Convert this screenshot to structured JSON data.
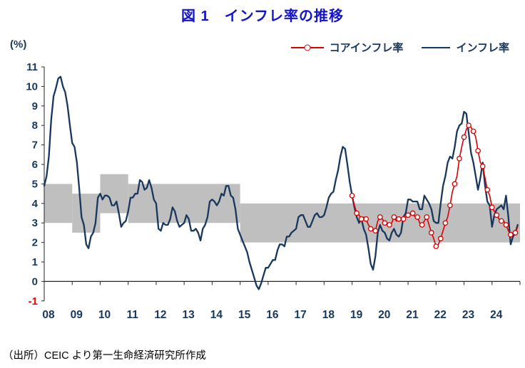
{
  "colors": {
    "title": "#1414CC",
    "navy": "#17375E",
    "red": "#D80000",
    "band": "#BFBFBF",
    "negative_tick": "#FF0000",
    "axis": "#262626"
  },
  "source_note": "（出所）CEIC より第一生命経済研究所作成",
  "chart_data": {
    "type": "line",
    "title": "図 1　インフレ率の推移",
    "ylabel": "(%)",
    "xlabel": "",
    "ylim": [
      -1,
      11
    ],
    "x_range": [
      2008,
      2025
    ],
    "grid": false,
    "legend_position": "top-right",
    "y_ticks": [
      11,
      10,
      9,
      8,
      7,
      6,
      5,
      4,
      3,
      2,
      1,
      0,
      -1
    ],
    "x_ticks": [
      "08",
      "09",
      "10",
      "11",
      "12",
      "13",
      "14",
      "15",
      "16",
      "17",
      "18",
      "19",
      "20",
      "21",
      "22",
      "23",
      "24"
    ],
    "tick_color": "#17375E",
    "negative_tick_color": "#FF0000",
    "axis_color": "#262626",
    "target_band_color": "#BFBFBF",
    "target_band_segments": [
      {
        "from": 2008,
        "to": 2009,
        "low": 3.0,
        "high": 5.0
      },
      {
        "from": 2009,
        "to": 2010,
        "low": 2.5,
        "high": 4.5
      },
      {
        "from": 2010,
        "to": 2011,
        "low": 3.5,
        "high": 5.5
      },
      {
        "from": 2011,
        "to": 2015,
        "low": 3.0,
        "high": 5.0
      },
      {
        "from": 2015,
        "to": 2025,
        "low": 2.0,
        "high": 4.0
      }
    ],
    "series": [
      {
        "id": "core-inflation",
        "name": "コアインフレ率",
        "color": "#D80000",
        "width": 1.6,
        "marker": "open-circle",
        "marker_every": 2,
        "start": 2019.0,
        "step": 0.0833333,
        "values": [
          4.4,
          3.9,
          3.5,
          3.4,
          3.2,
          3.3,
          3.2,
          2.9,
          2.7,
          2.6,
          2.6,
          3.1,
          3.3,
          3.2,
          3.0,
          2.9,
          2.9,
          3.0,
          3.3,
          3.1,
          3.2,
          3.2,
          3.2,
          3.3,
          3.4,
          3.5,
          3.5,
          3.3,
          3.3,
          3.0,
          2.9,
          3.1,
          3.3,
          2.9,
          2.5,
          2.2,
          1.8,
          1.9,
          2.2,
          2.6,
          3.0,
          3.3,
          3.9,
          4.6,
          5.0,
          5.4,
          6.3,
          6.9,
          7.4,
          7.8,
          8.0,
          7.9,
          7.7,
          7.4,
          6.7,
          6.1,
          5.9,
          5.3,
          4.7,
          4.4,
          3.8,
          3.6,
          3.4,
          3.2,
          3.1,
          3.1,
          2.9,
          2.6,
          2.4,
          2.4,
          2.5,
          2.8
        ]
      },
      {
        "id": "inflation",
        "name": "インフレ率",
        "color": "#17375E",
        "width": 2.3,
        "marker": "none",
        "start": 2008.0,
        "step": 0.0833333,
        "values": [
          4.9,
          5.4,
          6.4,
          8.3,
          9.5,
          9.9,
          10.4,
          10.5,
          10.0,
          9.7,
          9.0,
          8.0,
          7.1,
          6.9,
          6.1,
          4.8,
          3.3,
          2.9,
          1.9,
          1.7,
          2.3,
          2.5,
          3.0,
          4.3,
          4.5,
          4.2,
          4.4,
          4.4,
          4.3,
          3.9,
          3.9,
          4.1,
          3.5,
          2.8,
          3.0,
          3.1,
          3.6,
          4.3,
          4.3,
          4.5,
          4.5,
          5.2,
          5.1,
          4.7,
          4.8,
          5.2,
          4.8,
          4.2,
          4.0,
          2.7,
          2.6,
          3.0,
          2.9,
          2.9,
          3.2,
          3.8,
          3.6,
          3.1,
          2.8,
          2.9,
          3.0,
          3.4,
          3.2,
          2.6,
          2.6,
          2.7,
          2.5,
          2.1,
          2.7,
          2.9,
          3.3,
          4.1,
          4.2,
          4.1,
          3.9,
          4.1,
          4.5,
          4.4,
          4.9,
          4.9,
          4.4,
          4.3,
          3.7,
          2.7,
          2.4,
          2.1,
          1.8,
          1.5,
          1.0,
          0.6,
          0.2,
          -0.2,
          -0.4,
          -0.1,
          0.3,
          0.7,
          0.7,
          0.9,
          1.1,
          1.1,
          1.6,
          1.9,
          1.9,
          1.8,
          2.3,
          2.3,
          2.5,
          2.6,
          2.7,
          3.3,
          3.4,
          3.4,
          3.1,
          2.8,
          2.8,
          3.1,
          3.4,
          3.5,
          3.3,
          3.3,
          3.4,
          3.8,
          4.3,
          4.5,
          4.6,
          5.2,
          5.7,
          6.4,
          6.9,
          6.8,
          6.0,
          5.1,
          4.4,
          3.8,
          3.3,
          3.0,
          3.2,
          2.7,
          2.4,
          1.7,
          0.9,
          0.6,
          1.3,
          2.5,
          2.9,
          2.6,
          2.5,
          2.2,
          2.1,
          2.5,
          2.7,
          2.4,
          2.3,
          2.5,
          3.3,
          3.5,
          4.2,
          4.2,
          4.1,
          4.1,
          4.1,
          3.7,
          3.7,
          4.4,
          4.2,
          4.0,
          3.7,
          3.1,
          3.0,
          3.0,
          4.0,
          4.9,
          5.4,
          6.1,
          6.4,
          6.3,
          6.9,
          7.7,
          8.0,
          8.1,
          8.7,
          8.6,
          7.6,
          6.6,
          6.1,
          5.4,
          4.7,
          5.3,
          6.1,
          4.9,
          4.1,
          3.9,
          2.8,
          3.4,
          3.7,
          3.8,
          3.9,
          3.7,
          4.4,
          3.3,
          1.9,
          2.3,
          2.5,
          2.9
        ]
      }
    ]
  }
}
